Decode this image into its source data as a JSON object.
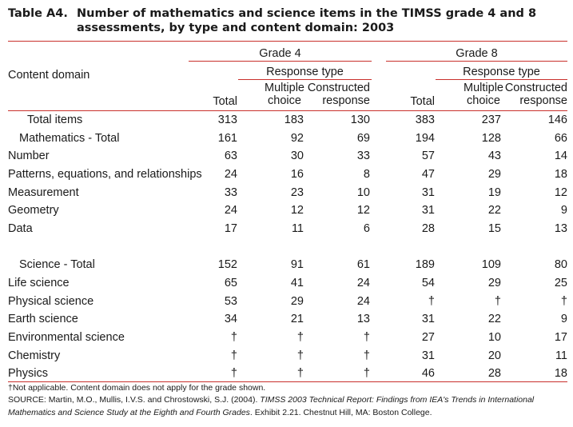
{
  "title": {
    "label": "Table A4.",
    "line1": "Number of mathematics and science items in the TIMSS grade 4 and 8",
    "line2": "assessments, by type and content domain: 2003"
  },
  "header": {
    "content_domain": "Content domain",
    "grade4": "Grade 4",
    "grade8": "Grade 8",
    "response_type": "Response type",
    "total": "Total",
    "multiple_1": "Multiple",
    "multiple_2": "choice",
    "constructed_1": "Constructed",
    "constructed_2": "response"
  },
  "rows": [
    {
      "label": "Total items",
      "g4": [
        "313",
        "183",
        "130"
      ],
      "g8": [
        "383",
        "237",
        "146"
      ]
    },
    {
      "label": "Mathematics - Total",
      "g4": [
        "161",
        "92",
        "69"
      ],
      "g8": [
        "194",
        "128",
        "66"
      ]
    },
    {
      "label": "Number",
      "g4": [
        "63",
        "30",
        "33"
      ],
      "g8": [
        "57",
        "43",
        "14"
      ]
    },
    {
      "label": "Patterns, equations, and relationships",
      "g4": [
        "24",
        "16",
        "8"
      ],
      "g8": [
        "47",
        "29",
        "18"
      ]
    },
    {
      "label": "Measurement",
      "g4": [
        "33",
        "23",
        "10"
      ],
      "g8": [
        "31",
        "19",
        "12"
      ]
    },
    {
      "label": "Geometry",
      "g4": [
        "24",
        "12",
        "12"
      ],
      "g8": [
        "31",
        "22",
        "9"
      ]
    },
    {
      "label": "Data",
      "g4": [
        "17",
        "11",
        "6"
      ],
      "g8": [
        "28",
        "15",
        "13"
      ]
    },
    {
      "label": "Science - Total",
      "g4": [
        "152",
        "91",
        "61"
      ],
      "g8": [
        "189",
        "109",
        "80"
      ]
    },
    {
      "label": "Life science",
      "g4": [
        "65",
        "41",
        "24"
      ],
      "g8": [
        "54",
        "29",
        "25"
      ]
    },
    {
      "label": "Physical science",
      "g4": [
        "53",
        "29",
        "24"
      ],
      "g8": [
        "†",
        "†",
        "†"
      ]
    },
    {
      "label": "Earth science",
      "g4": [
        "34",
        "21",
        "13"
      ],
      "g8": [
        "31",
        "22",
        "9"
      ]
    },
    {
      "label": "Environmental science",
      "g4": [
        "†",
        "†",
        "†"
      ],
      "g8": [
        "27",
        "10",
        "17"
      ]
    },
    {
      "label": "Chemistry",
      "g4": [
        "†",
        "†",
        "†"
      ],
      "g8": [
        "31",
        "20",
        "11"
      ]
    },
    {
      "label": "Physics",
      "g4": [
        "†",
        "†",
        "†"
      ],
      "g8": [
        "46",
        "28",
        "18"
      ]
    }
  ],
  "footnotes": {
    "na": "†Not applicable. Content domain does not apply for the grade shown.",
    "source_prefix": "SOURCE: Martin, M.O., Mullis, I.V.S. and Chrostowski, S.J. (2004). ",
    "source_title_1": "TIMSS 2003 Technical Report: Findings from IEA's Trends in International",
    "source_title_2": "Mathematics and Science Study at the Eighth and Fourth Grades",
    "source_suffix": ". Exhibit 2.21. Chestnut Hill, MA: Boston College."
  }
}
